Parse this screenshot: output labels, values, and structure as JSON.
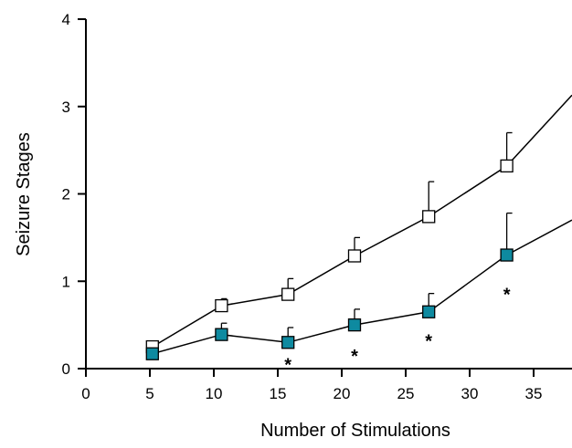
{
  "chart_data": {
    "type": "line",
    "title": "",
    "xlabel": "Number of Stimulations",
    "ylabel": "Seizure Stages",
    "xlim": [
      0,
      38
    ],
    "ylim": [
      0,
      4
    ],
    "xticks": [
      0,
      5,
      10,
      15,
      20,
      25,
      30,
      35
    ],
    "yticks": [
      0,
      1,
      2,
      3,
      4
    ],
    "grid": false,
    "legend": "none",
    "series": [
      {
        "marker": "open-square",
        "color": "#ffffff",
        "edge_color": "#000000",
        "x": [
          5.2,
          10.6,
          15.8,
          21.0,
          26.8,
          32.9,
          38.0
        ],
        "y": [
          0.25,
          0.72,
          0.85,
          1.29,
          1.74,
          2.32,
          3.13
        ],
        "error_upper": [
          0.0,
          0.08,
          0.18,
          0.21,
          0.4,
          0.38,
          null
        ]
      },
      {
        "marker": "filled-square",
        "color": "#0e8aa0",
        "edge_color": "#000000",
        "x": [
          5.2,
          10.6,
          15.8,
          21.0,
          26.8,
          32.9,
          38.0
        ],
        "y": [
          0.17,
          0.39,
          0.3,
          0.5,
          0.65,
          1.3,
          1.7
        ],
        "error_upper": [
          0.0,
          0.13,
          0.17,
          0.18,
          0.21,
          0.48,
          null
        ]
      }
    ],
    "annotations": [
      {
        "text": "*",
        "x": 15.8,
        "y": 0.08
      },
      {
        "text": "*",
        "x": 21.0,
        "y": 0.18
      },
      {
        "text": "*",
        "x": 26.8,
        "y": 0.35
      },
      {
        "text": "*",
        "x": 32.9,
        "y": 0.88
      }
    ]
  }
}
